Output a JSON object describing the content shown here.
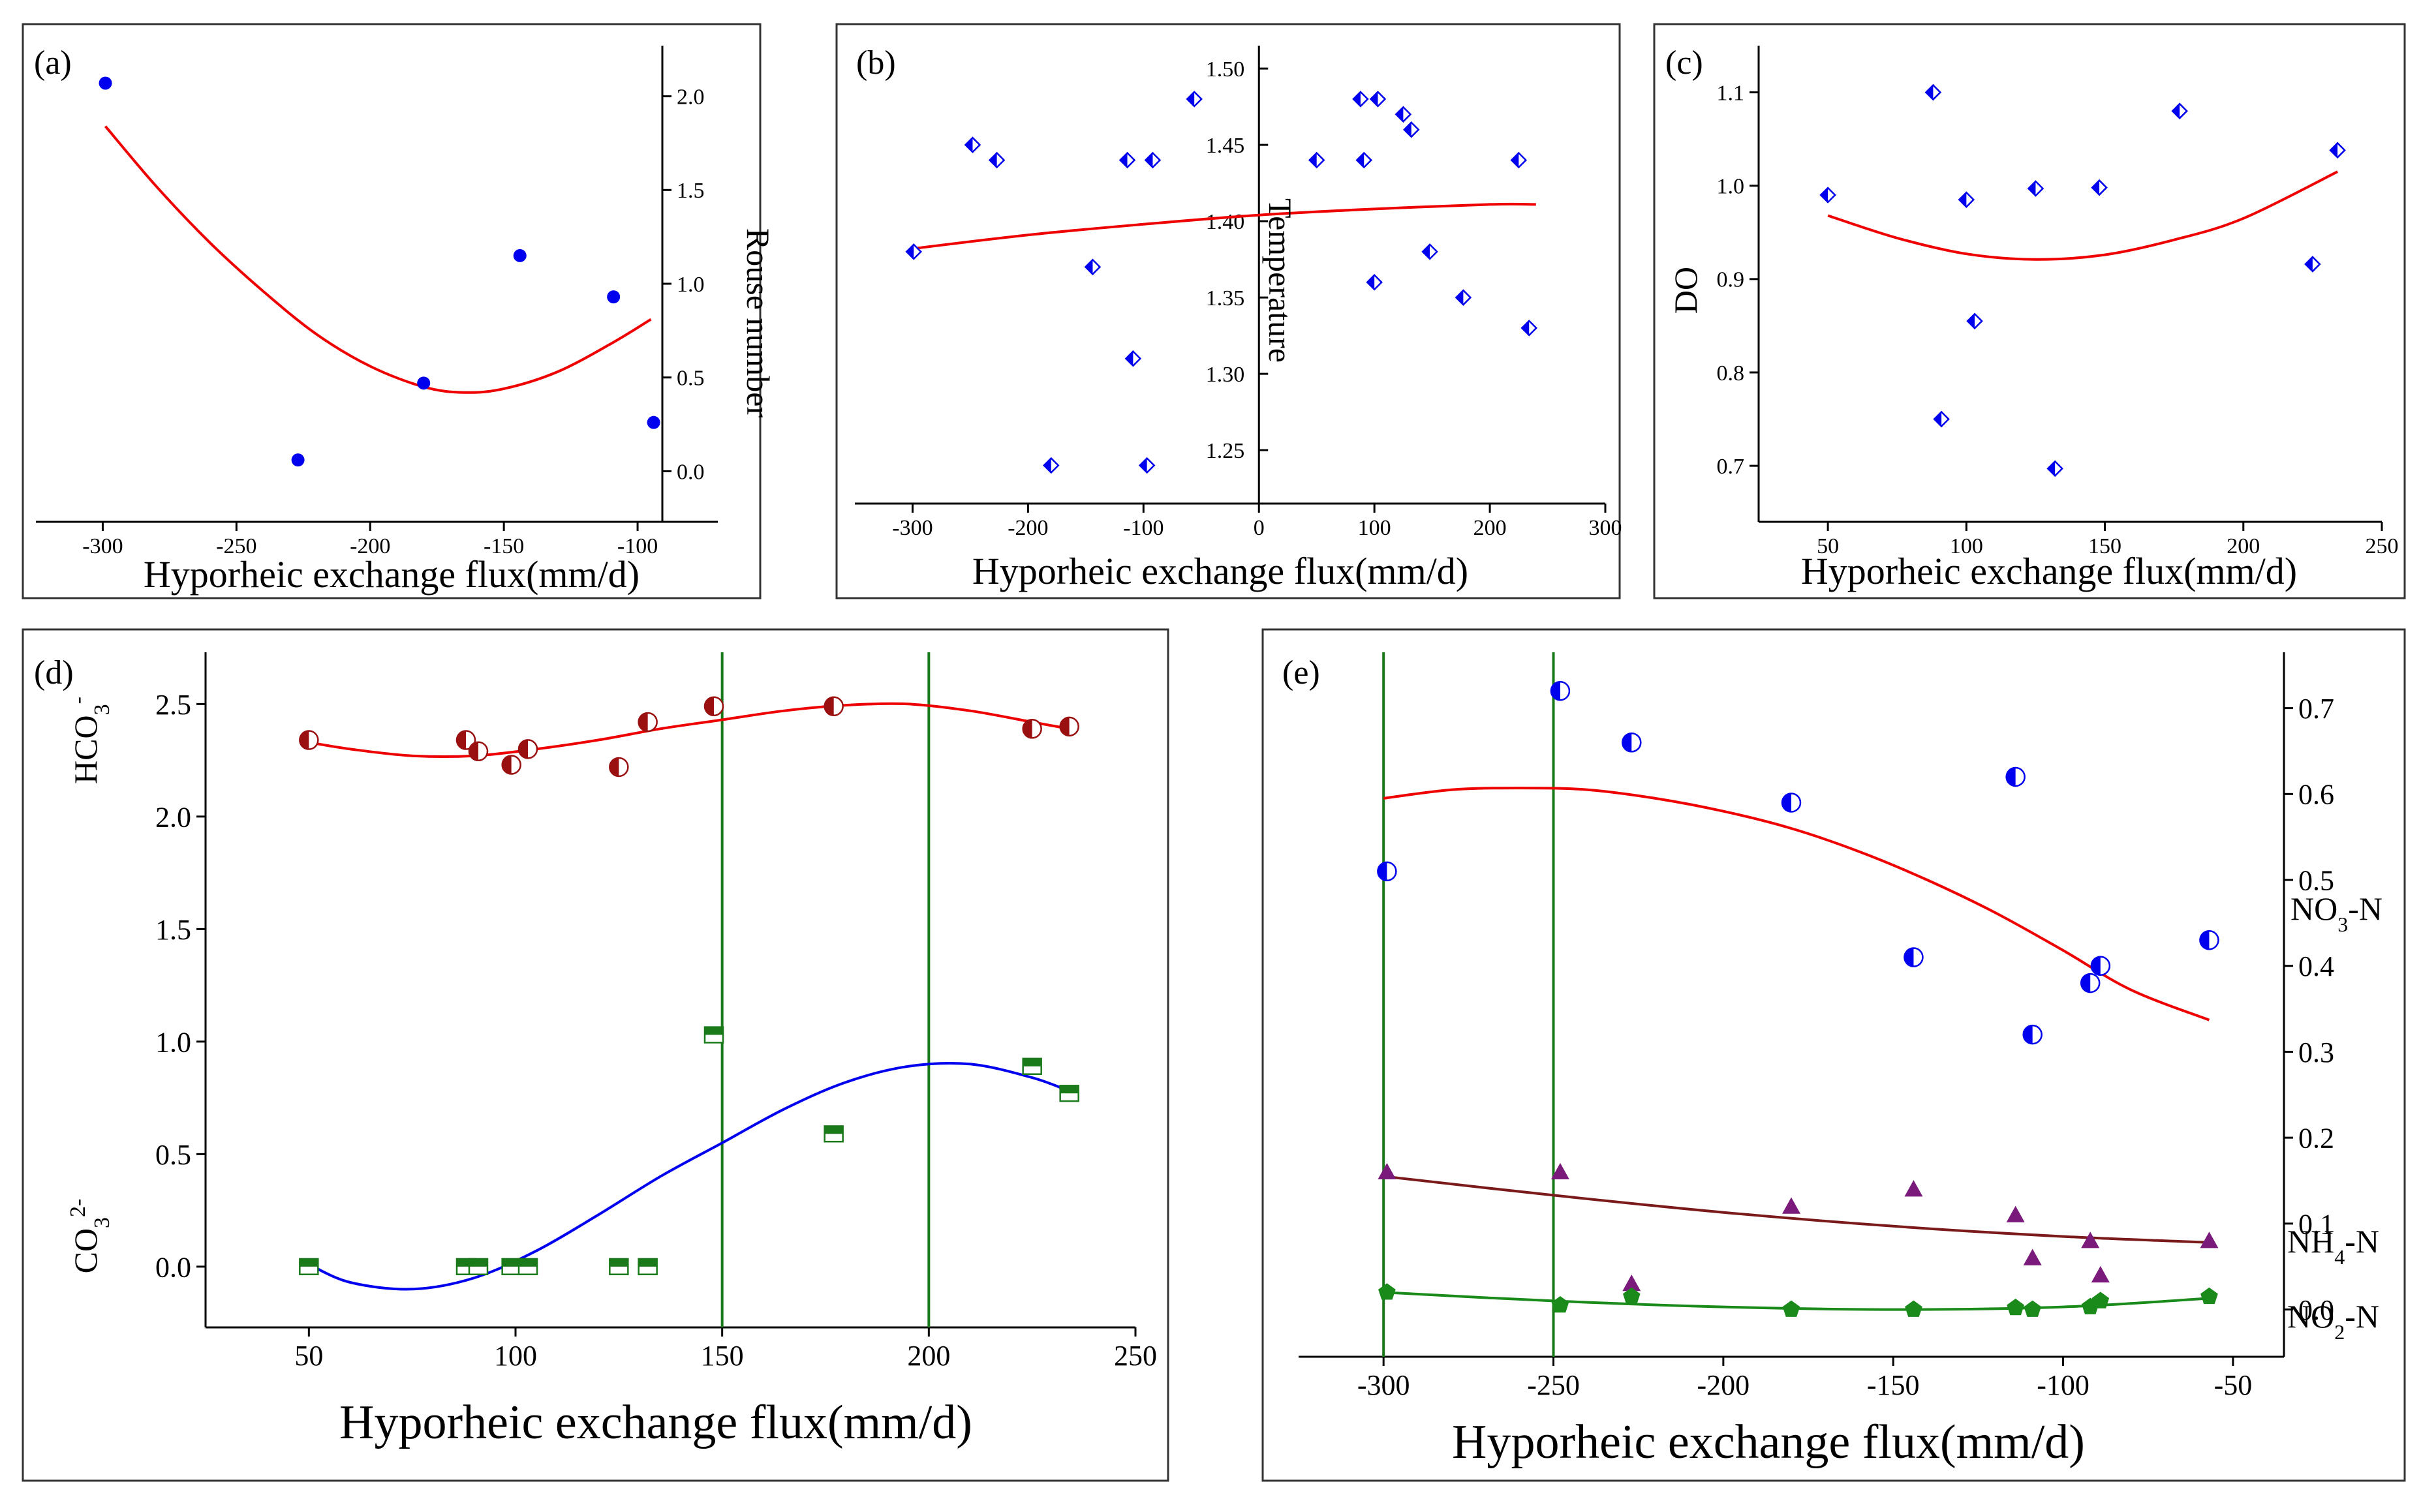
{
  "chart_data": [
    {
      "panel": "(a)",
      "type": "scatter",
      "xlabel": "Hyporheic exchange flux(mm/d)",
      "ylabel": "Rouse number",
      "xlim": [
        -325,
        -70
      ],
      "ylim": [
        -0.27,
        2.27
      ],
      "xticks": [
        -300,
        -250,
        -200,
        -150,
        -100
      ],
      "yticks": [
        0.0,
        0.5,
        1.0,
        1.5,
        2.0
      ],
      "y_axis_side": "right",
      "marker_color": "#0000ee",
      "fit_color": "#ee0000",
      "x": [
        -299,
        -227,
        -180,
        -144,
        -109,
        -94
      ],
      "y": [
        2.07,
        0.06,
        0.47,
        1.15,
        0.93,
        0.26
      ],
      "fit": [
        [
          -299,
          1.84
        ],
        [
          -280,
          1.52
        ],
        [
          -260,
          1.22
        ],
        [
          -240,
          0.96
        ],
        [
          -220,
          0.73
        ],
        [
          -200,
          0.56
        ],
        [
          -180,
          0.45
        ],
        [
          -165,
          0.42
        ],
        [
          -150,
          0.44
        ],
        [
          -130,
          0.53
        ],
        [
          -110,
          0.68
        ],
        [
          -95,
          0.81
        ]
      ]
    },
    {
      "panel": "(b)",
      "type": "scatter",
      "xlabel": "Hyporheic exchange flux(mm/d)",
      "ylabel": "Temperature",
      "xlim": [
        -350,
        300
      ],
      "ylim": [
        1.215,
        1.515
      ],
      "xticks": [
        -300,
        -200,
        -100,
        0,
        100,
        200,
        300
      ],
      "yticks": [
        1.25,
        1.3,
        1.35,
        1.4,
        1.45,
        1.5
      ],
      "y_axis_position": "x=0",
      "marker_color": "#0000ee",
      "fit_color": "#ee0000",
      "x": [
        -299,
        -248,
        -227,
        -180,
        -144,
        -114,
        -109,
        -97,
        -92,
        -56,
        50,
        88,
        91,
        100,
        103,
        125,
        132,
        148,
        177,
        225,
        234
      ],
      "y": [
        1.38,
        1.45,
        1.44,
        1.24,
        1.37,
        1.44,
        1.31,
        1.24,
        1.44,
        1.48,
        1.44,
        1.48,
        1.44,
        1.36,
        1.48,
        1.47,
        1.46,
        1.38,
        1.35,
        1.44,
        1.33
      ],
      "fit": [
        [
          -300,
          1.382
        ],
        [
          -200,
          1.391
        ],
        [
          -100,
          1.398
        ],
        [
          0,
          1.404
        ],
        [
          100,
          1.408
        ],
        [
          200,
          1.411
        ],
        [
          240,
          1.411
        ]
      ]
    },
    {
      "panel": "(c)",
      "type": "scatter",
      "xlabel": "Hyporheic exchange flux(mm/d)",
      "ylabel": "DO",
      "xlim": [
        25,
        250
      ],
      "ylim": [
        0.64,
        1.15
      ],
      "xticks": [
        50,
        100,
        150,
        200,
        250
      ],
      "yticks": [
        0.7,
        0.8,
        0.9,
        1.0,
        1.1
      ],
      "marker_color": "#0000ee",
      "fit_color": "#ee0000",
      "x": [
        50,
        88,
        91,
        100,
        103,
        125,
        132,
        148,
        177,
        225,
        234
      ],
      "y": [
        0.99,
        1.1,
        0.75,
        0.985,
        0.855,
        0.997,
        0.697,
        0.998,
        1.08,
        0.916,
        1.038
      ],
      "fit": [
        [
          50,
          0.968
        ],
        [
          75,
          0.944
        ],
        [
          100,
          0.927
        ],
        [
          125,
          0.921
        ],
        [
          150,
          0.926
        ],
        [
          175,
          0.942
        ],
        [
          200,
          0.965
        ],
        [
          234,
          1.015
        ]
      ]
    },
    {
      "panel": "(d)",
      "type": "scatter",
      "xlabel": "Hyporheic exchange flux(mm/d)",
      "ylabel_top": "HCO",
      "ylabel_top_sub": "3",
      "ylabel_top_sup": "-",
      "ylabel_bottom": "CO",
      "ylabel_bottom_sub": "3",
      "ylabel_bottom_sup": "2-",
      "xlim": [
        25,
        250
      ],
      "ylim": [
        -0.27,
        2.73
      ],
      "xticks": [
        50,
        100,
        150,
        200,
        250
      ],
      "yticks": [
        0.0,
        0.5,
        1.0,
        1.5,
        2.0,
        2.5
      ],
      "vlines": [
        150,
        200
      ],
      "vline_color": "#1a7a1a",
      "series": [
        {
          "name": "HCO3-",
          "marker_color": "#9a1010",
          "fit_color": "#ee0000",
          "x": [
            50,
            88,
            91,
            99,
            103,
            125,
            132,
            148,
            177,
            225,
            234
          ],
          "y": [
            2.34,
            2.34,
            2.29,
            2.23,
            2.3,
            2.22,
            2.42,
            2.49,
            2.49,
            2.39,
            2.4
          ],
          "fit": [
            [
              50,
              2.33
            ],
            [
              60,
              2.3
            ],
            [
              75,
              2.27
            ],
            [
              90,
              2.27
            ],
            [
              105,
              2.3
            ],
            [
              120,
              2.34
            ],
            [
              135,
              2.39
            ],
            [
              150,
              2.43
            ],
            [
              165,
              2.47
            ],
            [
              180,
              2.495
            ],
            [
              195,
              2.5
            ],
            [
              210,
              2.47
            ],
            [
              225,
              2.42
            ],
            [
              234,
              2.39
            ]
          ]
        },
        {
          "name": "CO32-",
          "marker_color": "#1a7a1a",
          "fit_color": "#0000ee",
          "x": [
            50,
            88,
            91,
            99,
            103,
            125,
            132,
            148,
            177,
            225,
            234
          ],
          "y": [
            0.0,
            0.0,
            0.0,
            0.0,
            0.0,
            0.0,
            0.0,
            1.03,
            0.59,
            0.89,
            0.77
          ],
          "fit": [
            [
              50,
              0.01
            ],
            [
              60,
              -0.07
            ],
            [
              75,
              -0.1
            ],
            [
              90,
              -0.05
            ],
            [
              105,
              0.07
            ],
            [
              120,
              0.23
            ],
            [
              135,
              0.4
            ],
            [
              150,
              0.55
            ],
            [
              165,
              0.7
            ],
            [
              180,
              0.82
            ],
            [
              195,
              0.89
            ],
            [
              210,
              0.9
            ],
            [
              225,
              0.84
            ],
            [
              234,
              0.78
            ]
          ]
        }
      ]
    },
    {
      "panel": "(e)",
      "type": "scatter",
      "xlabel": "Hyporheic exchange flux(mm/d)",
      "xlim": [
        -325,
        -35
      ],
      "ylim": [
        -0.055,
        0.765
      ],
      "xticks": [
        -300,
        -250,
        -200,
        -150,
        -100,
        -50
      ],
      "yticks": [
        0.0,
        0.1,
        0.2,
        0.3,
        0.4,
        0.5,
        0.6,
        0.7
      ],
      "y_axis_side": "right",
      "vlines": [
        -300,
        -250
      ],
      "vline_color": "#1a7a1a",
      "series": [
        {
          "name": "NO3-N",
          "label": "NO",
          "label_sub": "3",
          "label_tail": "-N",
          "marker_color": "#0000ee",
          "fit_color": "#ee0000",
          "x": [
            -299,
            -248,
            -227,
            -180,
            -144,
            -114,
            -109,
            -92,
            -89,
            -57
          ],
          "y": [
            0.51,
            0.72,
            0.66,
            0.59,
            0.41,
            0.62,
            0.32,
            0.38,
            0.4,
            0.43
          ],
          "fit": [
            [
              -300,
              0.595
            ],
            [
              -280,
              0.605
            ],
            [
              -260,
              0.607
            ],
            [
              -240,
              0.605
            ],
            [
              -220,
              0.595
            ],
            [
              -200,
              0.58
            ],
            [
              -180,
              0.56
            ],
            [
              -160,
              0.533
            ],
            [
              -140,
              0.5
            ],
            [
              -120,
              0.462
            ],
            [
              -100,
              0.418
            ],
            [
              -80,
              0.372
            ],
            [
              -57,
              0.337
            ]
          ]
        },
        {
          "name": "NH4-N",
          "label": "NH",
          "label_sub": "4",
          "label_tail": "-N",
          "marker_color": "#7a1a7a",
          "fit_color": "#7a1a1a",
          "x": [
            -299,
            -248,
            -227,
            -180,
            -144,
            -114,
            -109,
            -92,
            -89,
            -57
          ],
          "y": [
            0.16,
            0.16,
            0.03,
            0.12,
            0.14,
            0.11,
            0.06,
            0.08,
            0.04,
            0.08
          ],
          "fit": [
            [
              -300,
              0.155
            ],
            [
              -250,
              0.133
            ],
            [
              -200,
              0.113
            ],
            [
              -150,
              0.097
            ],
            [
              -100,
              0.085
            ],
            [
              -57,
              0.078
            ]
          ]
        },
        {
          "name": "NO2-N",
          "label": "NO",
          "label_sub": "2",
          "label_tail": "-N",
          "marker_color": "#1a8a1a",
          "fit_color": "#1a8a1a",
          "x": [
            -299,
            -248,
            -227,
            -180,
            -144,
            -114,
            -109,
            -92,
            -89,
            -57
          ],
          "y": [
            0.02,
            0.005,
            0.015,
            0.0,
            0.0,
            0.002,
            0.0,
            0.003,
            0.01,
            0.015
          ],
          "fit": [
            [
              -300,
              0.02
            ],
            [
              -250,
              0.01
            ],
            [
              -200,
              0.003
            ],
            [
              -150,
              0.0
            ],
            [
              -100,
              0.003
            ],
            [
              -57,
              0.013
            ]
          ]
        }
      ]
    }
  ]
}
